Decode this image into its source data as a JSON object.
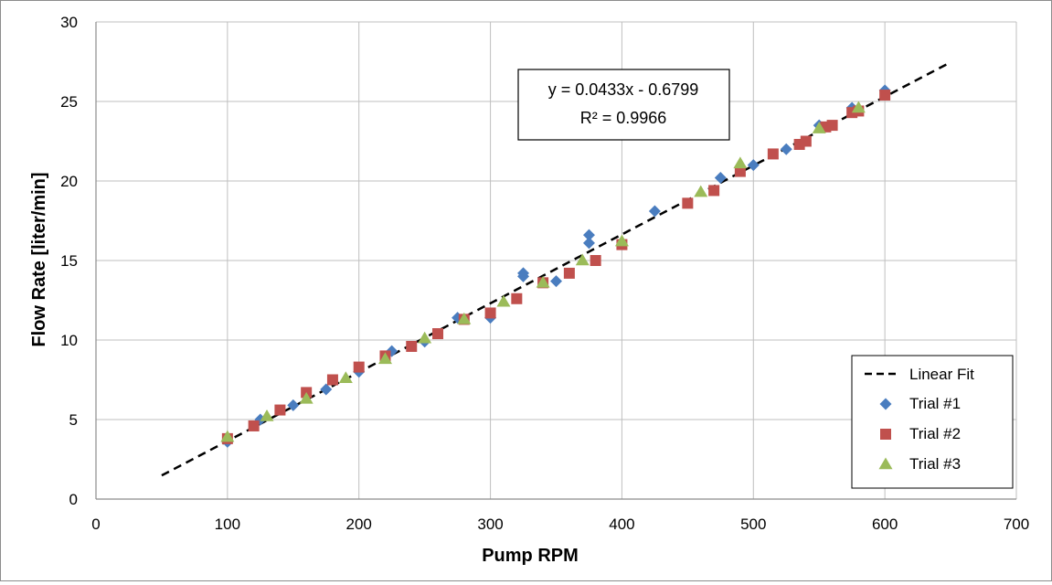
{
  "chart_data": {
    "type": "scatter",
    "title": "",
    "xlabel": "Pump RPM",
    "ylabel": "Flow Rate [liter/min]",
    "xlim": [
      0,
      700
    ],
    "ylim": [
      0,
      30
    ],
    "xticks": [
      0,
      100,
      200,
      300,
      400,
      500,
      600,
      700
    ],
    "yticks": [
      0,
      5,
      10,
      15,
      20,
      25,
      30
    ],
    "grid": true,
    "legend_position": "bottom-right",
    "colors": {
      "trial1": "#4a7dbf",
      "trial2": "#c0504d",
      "trial3": "#9bbb59",
      "fit": "#000000",
      "grid": "#bfbfbf"
    },
    "fit": {
      "name": "Linear Fit",
      "slope": 0.0433,
      "intercept": -0.6799,
      "x_range": [
        50,
        650
      ],
      "equation": "y = 0.0433x - 0.6799",
      "r_squared": "R² = 0.9966"
    },
    "series": [
      {
        "name": "Trial #1",
        "marker": "diamond",
        "points": [
          [
            100,
            3.6
          ],
          [
            125,
            5.0
          ],
          [
            150,
            5.9
          ],
          [
            175,
            6.9
          ],
          [
            200,
            8.0
          ],
          [
            225,
            9.3
          ],
          [
            250,
            9.9
          ],
          [
            275,
            11.4
          ],
          [
            300,
            11.4
          ],
          [
            325,
            14.2
          ],
          [
            325,
            14.0
          ],
          [
            350,
            13.7
          ],
          [
            375,
            16.6
          ],
          [
            375,
            16.1
          ],
          [
            425,
            18.1
          ],
          [
            475,
            20.2
          ],
          [
            500,
            21.0
          ],
          [
            525,
            22.0
          ],
          [
            550,
            23.5
          ],
          [
            575,
            24.6
          ],
          [
            600,
            25.7
          ]
        ]
      },
      {
        "name": "Trial #2",
        "marker": "square",
        "points": [
          [
            100,
            3.8
          ],
          [
            120,
            4.6
          ],
          [
            140,
            5.6
          ],
          [
            160,
            6.7
          ],
          [
            180,
            7.5
          ],
          [
            200,
            8.3
          ],
          [
            220,
            9.0
          ],
          [
            240,
            9.6
          ],
          [
            260,
            10.4
          ],
          [
            280,
            11.3
          ],
          [
            300,
            11.7
          ],
          [
            320,
            12.6
          ],
          [
            340,
            13.6
          ],
          [
            360,
            14.2
          ],
          [
            380,
            15.0
          ],
          [
            400,
            16.0
          ],
          [
            450,
            18.6
          ],
          [
            470,
            19.4
          ],
          [
            490,
            20.6
          ],
          [
            515,
            21.7
          ],
          [
            535,
            22.3
          ],
          [
            540,
            22.5
          ],
          [
            555,
            23.4
          ],
          [
            560,
            23.5
          ],
          [
            575,
            24.3
          ],
          [
            580,
            24.4
          ],
          [
            600,
            25.4
          ]
        ]
      },
      {
        "name": "Trial #3",
        "marker": "triangle",
        "points": [
          [
            100,
            3.9
          ],
          [
            130,
            5.2
          ],
          [
            160,
            6.3
          ],
          [
            190,
            7.6
          ],
          [
            220,
            8.8
          ],
          [
            250,
            10.1
          ],
          [
            280,
            11.3
          ],
          [
            310,
            12.4
          ],
          [
            340,
            13.6
          ],
          [
            370,
            15.0
          ],
          [
            400,
            16.2
          ],
          [
            460,
            19.3
          ],
          [
            490,
            21.1
          ],
          [
            550,
            23.3
          ],
          [
            580,
            24.6
          ]
        ]
      }
    ]
  }
}
